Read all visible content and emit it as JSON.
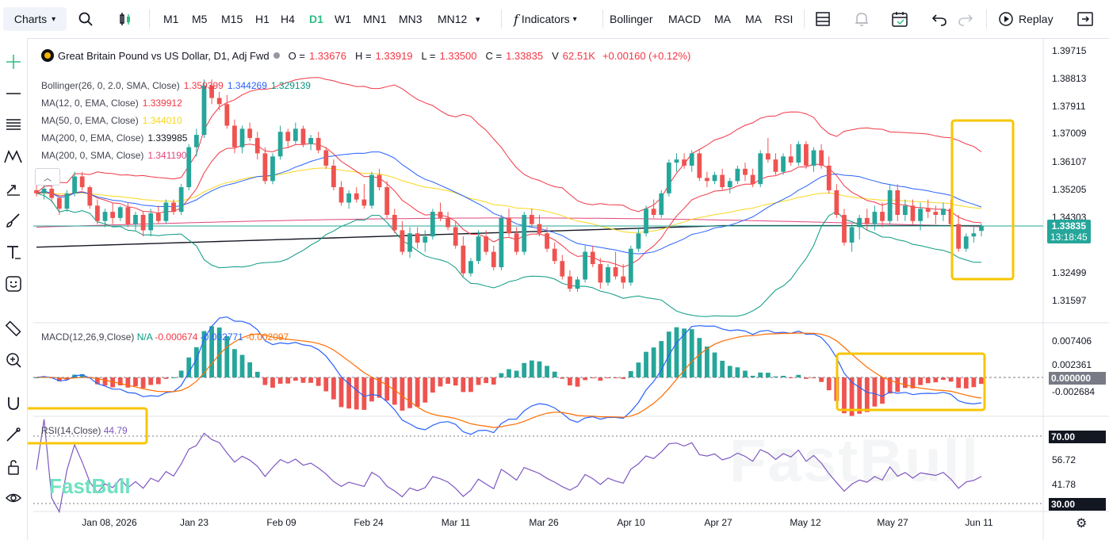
{
  "toolbar": {
    "charts": "Charts",
    "intervals": [
      "M1",
      "M5",
      "M15",
      "H1",
      "H4",
      "D1",
      "W1",
      "MN1",
      "MN3",
      "MN12"
    ],
    "active_interval": "D1",
    "indicators": "Indicators",
    "quick_indicators": [
      "Bollinger",
      "MACD",
      "MA",
      "MA",
      "RSI"
    ],
    "replay": "Replay"
  },
  "symbol": {
    "name": "Great Britain Pound vs US Dollar, D1, Adj Fwd",
    "o_label": "O =",
    "o": "1.33676",
    "h_label": "H =",
    "h": "1.33919",
    "l_label": "L =",
    "l": "1.33500",
    "c_label": "C =",
    "c": "1.33835",
    "v_label": "V",
    "v": "62.51K",
    "change": "+0.00160 (+0.12%)"
  },
  "indicators": [
    {
      "label": "Bollinger(26, 0, 2.0, SMA, Close)",
      "values": [
        "1.359399",
        "1.344269",
        "1.329139"
      ],
      "colors": [
        "#f23645",
        "#2962ff",
        "#089981"
      ]
    },
    {
      "label": "MA(12, 0, EMA, Close)",
      "values": [
        "1.339912"
      ],
      "colors": [
        "#f23645"
      ]
    },
    {
      "label": "MA(50, 0, EMA, Close)",
      "values": [
        "1.344010"
      ],
      "colors": [
        "#f9d71c"
      ]
    },
    {
      "label": "MA(200, 0, EMA, Close)",
      "values": [
        "1.339985"
      ],
      "colors": [
        "#131722"
      ]
    },
    {
      "label": "MA(200, 0, SMA, Close)",
      "values": [
        "1.341190"
      ],
      "colors": [
        "#e0457b"
      ]
    }
  ],
  "macd": {
    "label": "MACD(12,26,9,Close)",
    "v1": "N/A",
    "v2": "-0.000674",
    "v3": "-0.002771",
    "v4": "-0.002097"
  },
  "rsi": {
    "label": "RSI(14,Close)",
    "value": "44.79"
  },
  "price_axis": [
    "1.39715",
    "1.38813",
    "1.37911",
    "1.37009",
    "1.36107",
    "1.35205",
    "1.34303",
    "1.33401",
    "1.32499",
    "1.31597"
  ],
  "current_price": {
    "price": "1.33835",
    "countdown": "13:18:45"
  },
  "macd_axis": [
    "0.007406",
    "0.002361",
    "0.000000",
    "-0.002684"
  ],
  "rsi_axis": [
    "70.00",
    "56.72",
    "41.78",
    "30.00"
  ],
  "date_axis": [
    "Jan 08, 2026",
    "Jan 23",
    "Feb 09",
    "Feb 24",
    "Mar 11",
    "Mar 26",
    "Apr 10",
    "Apr 27",
    "May 12",
    "May 27",
    "Jun 11"
  ],
  "watermark": "FastBull",
  "logo": "FastBull",
  "colors": {
    "up": "#26a69a",
    "down": "#ef5350",
    "highlight": "#f7c600",
    "accent": "#2ebd85"
  },
  "chart_data": {
    "type": "candlestick",
    "ohlc": [
      [
        1.35,
        1.3525,
        1.348,
        1.349
      ],
      [
        1.349,
        1.352,
        1.347,
        1.3505
      ],
      [
        1.3505,
        1.3515,
        1.346,
        1.3475
      ],
      [
        1.3475,
        1.348,
        1.342,
        1.344
      ],
      [
        1.344,
        1.35,
        1.343,
        1.349
      ],
      [
        1.349,
        1.356,
        1.348,
        1.3545
      ],
      [
        1.3545,
        1.356,
        1.35,
        1.351
      ],
      [
        1.351,
        1.3515,
        1.344,
        1.345
      ],
      [
        1.345,
        1.347,
        1.339,
        1.34
      ],
      [
        1.34,
        1.344,
        1.338,
        1.343
      ],
      [
        1.343,
        1.346,
        1.339,
        1.341
      ],
      [
        1.341,
        1.345,
        1.34,
        1.3445
      ],
      [
        1.3445,
        1.346,
        1.338,
        1.339
      ],
      [
        1.339,
        1.343,
        1.337,
        1.342
      ],
      [
        1.342,
        1.343,
        1.335,
        1.337
      ],
      [
        1.337,
        1.344,
        1.335,
        1.3425
      ],
      [
        1.3425,
        1.345,
        1.339,
        1.34
      ],
      [
        1.34,
        1.347,
        1.339,
        1.346
      ],
      [
        1.346,
        1.347,
        1.342,
        1.343
      ],
      [
        1.343,
        1.352,
        1.342,
        1.351
      ],
      [
        1.351,
        1.365,
        1.35,
        1.364
      ],
      [
        1.364,
        1.37,
        1.361,
        1.368
      ],
      [
        1.368,
        1.386,
        1.367,
        1.384
      ],
      [
        1.384,
        1.386,
        1.378,
        1.38
      ],
      [
        1.38,
        1.382,
        1.376,
        1.378
      ],
      [
        1.378,
        1.381,
        1.37,
        1.371
      ],
      [
        1.371,
        1.373,
        1.362,
        1.364
      ],
      [
        1.364,
        1.371,
        1.362,
        1.37
      ],
      [
        1.37,
        1.372,
        1.366,
        1.367
      ],
      [
        1.367,
        1.369,
        1.36,
        1.362
      ],
      [
        1.362,
        1.364,
        1.352,
        1.353
      ],
      [
        1.353,
        1.362,
        1.352,
        1.361
      ],
      [
        1.361,
        1.371,
        1.36,
        1.369
      ],
      [
        1.369,
        1.37,
        1.364,
        1.366
      ],
      [
        1.366,
        1.372,
        1.365,
        1.37
      ],
      [
        1.37,
        1.371,
        1.364,
        1.365
      ],
      [
        1.365,
        1.368,
        1.363,
        1.367
      ],
      [
        1.367,
        1.369,
        1.362,
        1.363
      ],
      [
        1.363,
        1.364,
        1.357,
        1.358
      ],
      [
        1.358,
        1.36,
        1.35,
        1.351
      ],
      [
        1.351,
        1.353,
        1.345,
        1.346
      ],
      [
        1.346,
        1.35,
        1.344,
        1.349
      ],
      [
        1.349,
        1.351,
        1.346,
        1.347
      ],
      [
        1.347,
        1.352,
        1.344,
        1.345
      ],
      [
        1.345,
        1.356,
        1.344,
        1.355
      ],
      [
        1.355,
        1.357,
        1.35,
        1.351
      ],
      [
        1.351,
        1.353,
        1.341,
        1.342
      ],
      [
        1.342,
        1.344,
        1.336,
        1.337
      ],
      [
        1.337,
        1.34,
        1.329,
        1.33
      ],
      [
        1.33,
        1.338,
        1.328,
        1.336
      ],
      [
        1.336,
        1.338,
        1.331,
        1.333
      ],
      [
        1.333,
        1.337,
        1.33,
        1.335
      ],
      [
        1.335,
        1.344,
        1.334,
        1.343
      ],
      [
        1.343,
        1.346,
        1.34,
        1.341
      ],
      [
        1.341,
        1.343,
        1.337,
        1.338
      ],
      [
        1.338,
        1.34,
        1.331,
        1.332
      ],
      [
        1.332,
        1.335,
        1.322,
        1.323
      ],
      [
        1.323,
        1.328,
        1.322,
        1.327
      ],
      [
        1.327,
        1.337,
        1.326,
        1.335
      ],
      [
        1.335,
        1.337,
        1.329,
        1.33
      ],
      [
        1.33,
        1.332,
        1.324,
        1.325
      ],
      [
        1.325,
        1.342,
        1.324,
        1.341
      ],
      [
        1.341,
        1.344,
        1.335,
        1.336
      ],
      [
        1.336,
        1.338,
        1.329,
        1.33
      ],
      [
        1.33,
        1.343,
        1.329,
        1.342
      ],
      [
        1.342,
        1.344,
        1.338,
        1.339
      ],
      [
        1.339,
        1.342,
        1.335,
        1.336
      ],
      [
        1.336,
        1.338,
        1.33,
        1.331
      ],
      [
        1.331,
        1.333,
        1.326,
        1.327
      ],
      [
        1.327,
        1.329,
        1.321,
        1.322
      ],
      [
        1.322,
        1.324,
        1.317,
        1.318
      ],
      [
        1.318,
        1.322,
        1.317,
        1.321
      ],
      [
        1.321,
        1.332,
        1.32,
        1.33
      ],
      [
        1.33,
        1.332,
        1.325,
        1.326
      ],
      [
        1.326,
        1.328,
        1.318,
        1.32
      ],
      [
        1.32,
        1.326,
        1.319,
        1.325
      ],
      [
        1.325,
        1.33,
        1.321,
        1.322
      ],
      [
        1.322,
        1.326,
        1.318,
        1.32
      ],
      [
        1.32,
        1.332,
        1.319,
        1.331
      ],
      [
        1.331,
        1.338,
        1.33,
        1.336
      ],
      [
        1.336,
        1.345,
        1.335,
        1.344
      ],
      [
        1.344,
        1.347,
        1.341,
        1.342
      ],
      [
        1.342,
        1.35,
        1.341,
        1.349
      ],
      [
        1.349,
        1.36,
        1.348,
        1.359
      ],
      [
        1.359,
        1.362,
        1.356,
        1.36
      ],
      [
        1.36,
        1.362,
        1.357,
        1.358
      ],
      [
        1.358,
        1.363,
        1.356,
        1.362
      ],
      [
        1.362,
        1.363,
        1.353,
        1.354
      ],
      [
        1.354,
        1.356,
        1.351,
        1.353
      ],
      [
        1.353,
        1.356,
        1.352,
        1.355
      ],
      [
        1.355,
        1.357,
        1.35,
        1.351
      ],
      [
        1.351,
        1.354,
        1.349,
        1.353
      ],
      [
        1.353,
        1.358,
        1.352,
        1.357
      ],
      [
        1.357,
        1.359,
        1.353,
        1.355
      ],
      [
        1.355,
        1.357,
        1.351,
        1.352
      ],
      [
        1.352,
        1.363,
        1.351,
        1.362
      ],
      [
        1.362,
        1.367,
        1.359,
        1.36
      ],
      [
        1.36,
        1.362,
        1.355,
        1.356
      ],
      [
        1.356,
        1.362,
        1.355,
        1.361
      ],
      [
        1.361,
        1.365,
        1.358,
        1.359
      ],
      [
        1.359,
        1.366,
        1.358,
        1.365
      ],
      [
        1.365,
        1.366,
        1.357,
        1.358
      ],
      [
        1.358,
        1.364,
        1.356,
        1.363
      ],
      [
        1.363,
        1.365,
        1.357,
        1.358
      ],
      [
        1.358,
        1.361,
        1.349,
        1.35
      ],
      [
        1.35,
        1.352,
        1.341,
        1.342
      ],
      [
        1.342,
        1.344,
        1.332,
        1.333
      ],
      [
        1.333,
        1.339,
        1.33,
        1.338
      ],
      [
        1.338,
        1.342,
        1.334,
        1.341
      ],
      [
        1.341,
        1.344,
        1.337,
        1.339
      ],
      [
        1.339,
        1.345,
        1.337,
        1.343
      ],
      [
        1.343,
        1.346,
        1.338,
        1.34
      ],
      [
        1.34,
        1.352,
        1.339,
        1.35
      ],
      [
        1.35,
        1.352,
        1.34,
        1.342
      ],
      [
        1.342,
        1.347,
        1.34,
        1.345
      ],
      [
        1.345,
        1.347,
        1.339,
        1.34
      ],
      [
        1.34,
        1.346,
        1.337,
        1.344
      ],
      [
        1.344,
        1.347,
        1.341,
        1.343
      ],
      [
        1.343,
        1.345,
        1.339,
        1.342
      ],
      [
        1.342,
        1.346,
        1.34,
        1.344
      ],
      [
        1.344,
        1.347,
        1.338,
        1.339
      ],
      [
        1.339,
        1.342,
        1.33,
        1.331
      ],
      [
        1.331,
        1.336,
        1.33,
        1.335
      ],
      [
        1.335,
        1.338,
        1.333,
        1.336
      ],
      [
        1.3368,
        1.3392,
        1.335,
        1.3384
      ]
    ]
  }
}
